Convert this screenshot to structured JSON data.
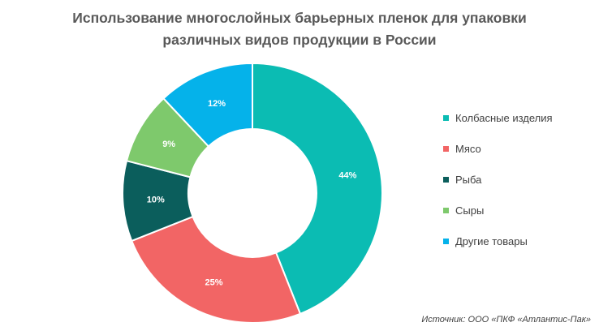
{
  "chart_data": {
    "type": "pie",
    "variant": "donut",
    "title_line1": "Использование  многослойных барьерных пленок для упаковки",
    "title_line2": "различных видов продукции в России",
    "categories": [
      "Колбасные изделия",
      "Мясо",
      "Рыба",
      "Сыры",
      "Другие товары"
    ],
    "values": [
      44,
      25,
      10,
      9,
      12
    ],
    "value_labels": [
      "44%",
      "25%",
      "10%",
      "9%",
      "12%"
    ],
    "colors": [
      "#0bbcb3",
      "#f26565",
      "#0b5e5c",
      "#7ec96c",
      "#05b2ea"
    ],
    "legend_position": "right",
    "source": "Источник: ООО «ПКФ «Атлантис-Пак»"
  }
}
